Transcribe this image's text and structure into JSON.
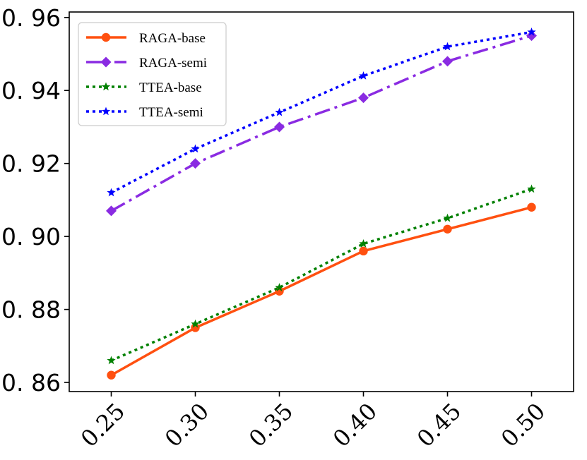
{
  "chart_data": {
    "type": "line",
    "title": "",
    "xlabel": "",
    "ylabel": "",
    "x": [
      0.25,
      0.3,
      0.35,
      0.4,
      0.45,
      0.5
    ],
    "x_tick_labels": [
      "0.25",
      "0.30",
      "0.35",
      "0.40",
      "0.45",
      "0.50"
    ],
    "y_ticks": [
      0.86,
      0.88,
      0.9,
      0.92,
      0.94,
      0.96
    ],
    "y_tick_labels": [
      "0. 86",
      "0. 88",
      "0. 90",
      "0. 92",
      "0. 94",
      "0. 96"
    ],
    "xlim": [
      0.225,
      0.525
    ],
    "ylim": [
      0.8575,
      0.9615
    ],
    "grid": false,
    "legend_position": "upper-left",
    "series": [
      {
        "name": "RAGA-base",
        "values": [
          0.862,
          0.875,
          0.885,
          0.896,
          0.902,
          0.908
        ],
        "color": "#ff5010",
        "line_style": "solid",
        "marker": "circle"
      },
      {
        "name": "RAGA-semi",
        "values": [
          0.907,
          0.92,
          0.93,
          0.938,
          0.948,
          0.955
        ],
        "color": "#8a2be2",
        "line_style": "dashdot",
        "marker": "diamond"
      },
      {
        "name": "TTEA-base",
        "values": [
          0.866,
          0.876,
          0.886,
          0.898,
          0.905,
          0.913
        ],
        "color": "#008000",
        "line_style": "dotted",
        "marker": "star"
      },
      {
        "name": "TTEA-semi",
        "values": [
          0.912,
          0.924,
          0.934,
          0.944,
          0.952,
          0.956
        ],
        "color": "#0000ff",
        "line_style": "dotted",
        "marker": "star"
      }
    ]
  }
}
